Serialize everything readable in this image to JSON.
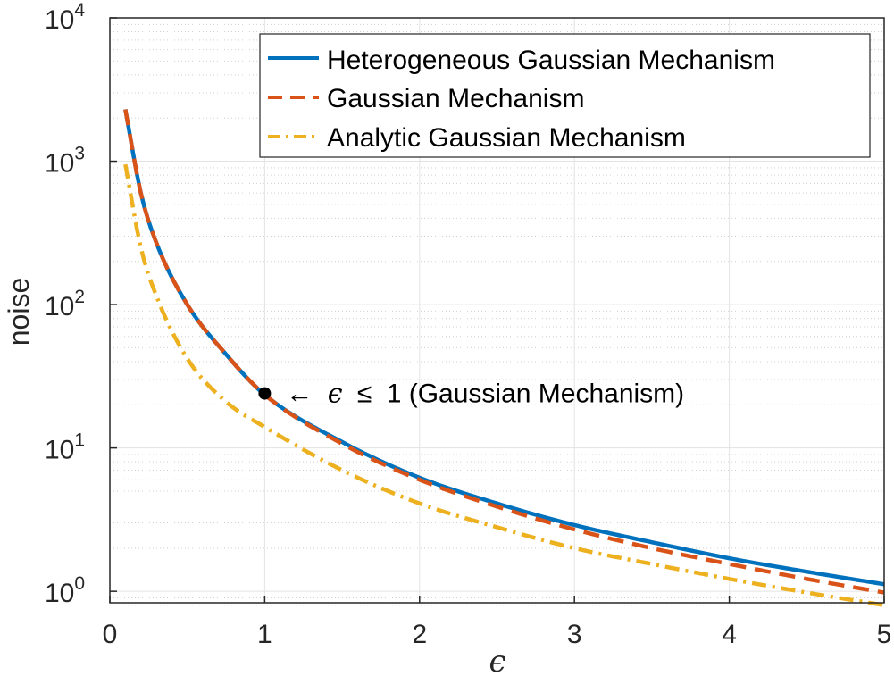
{
  "chart_data": {
    "type": "line",
    "xlabel": "ϵ",
    "ylabel": "noise",
    "xlim": [
      0,
      5
    ],
    "ylim_log10": [
      -0.08,
      4
    ],
    "y_scale": "log",
    "grid": "on (major and minor)",
    "legend_placement": "top-right",
    "x_ticks": [
      "0",
      "1",
      "2",
      "3",
      "4",
      "5"
    ],
    "y_ticks": [
      {
        "base": "10",
        "exp": "0"
      },
      {
        "base": "10",
        "exp": "1"
      },
      {
        "base": "10",
        "exp": "2"
      },
      {
        "base": "10",
        "exp": "3"
      },
      {
        "base": "10",
        "exp": "4"
      }
    ],
    "x": [
      0.1,
      0.2,
      0.3,
      0.5,
      0.75,
      1.0,
      1.5,
      2.0,
      2.5,
      3.0,
      3.5,
      4.0,
      4.5,
      5.0
    ],
    "series": [
      {
        "name": "Heterogeneous Gaussian Mechanism",
        "color": "#0072BD",
        "style": "solid",
        "values": [
          2300,
          600,
          270,
          100,
          45,
          23.5,
          11,
          6.2,
          4.1,
          2.9,
          2.2,
          1.7,
          1.37,
          1.12
        ]
      },
      {
        "name": "Gaussian Mechanism",
        "color": "#D95319",
        "style": "dashed",
        "values": [
          2300,
          600,
          270,
          100,
          45,
          23.5,
          10.7,
          6.0,
          3.9,
          2.7,
          2.0,
          1.55,
          1.22,
          0.98
        ]
      },
      {
        "name": "Analytic Gaussian Mechanism",
        "color": "#EDB120",
        "style": "dashdot",
        "values": [
          950,
          250,
          115,
          42,
          21,
          14,
          7,
          4.1,
          2.8,
          2.0,
          1.55,
          1.22,
          0.98,
          0.8
        ]
      }
    ],
    "annotation": {
      "marker_x": 1.0,
      "marker_y": 24,
      "text_arrow": "←",
      "text_symbol": "ϵ",
      "text_rel": "≤",
      "text_rest": "1 (Gaussian Mechanism)"
    }
  }
}
